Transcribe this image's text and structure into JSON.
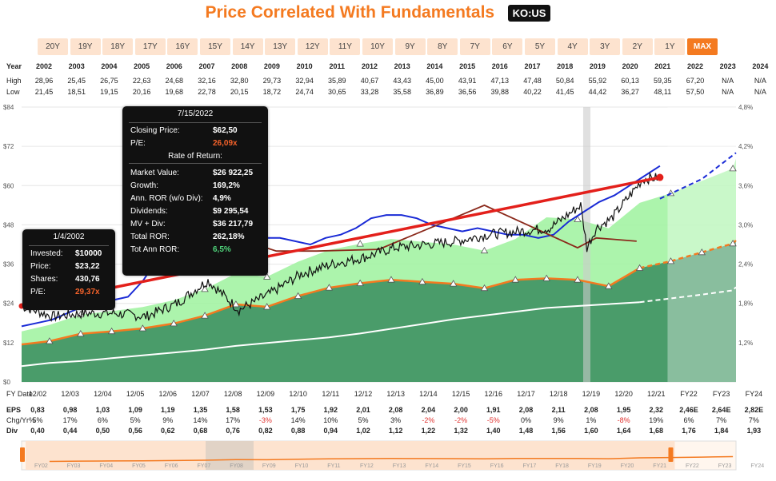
{
  "header": {
    "title": "Price Correlated With Fundamentals",
    "ticker": "KO:US"
  },
  "ranges": {
    "items": [
      "20Y",
      "19Y",
      "18Y",
      "17Y",
      "16Y",
      "15Y",
      "14Y",
      "13Y",
      "12Y",
      "11Y",
      "10Y",
      "9Y",
      "8Y",
      "7Y",
      "6Y",
      "5Y",
      "4Y",
      "3Y",
      "2Y",
      "1Y",
      "MAX"
    ],
    "active": "MAX"
  },
  "year_table": {
    "labels": {
      "year": "Year",
      "high": "High",
      "low": "Low"
    },
    "years": [
      "2002",
      "2003",
      "2004",
      "2005",
      "2006",
      "2007",
      "2008",
      "2009",
      "2010",
      "2011",
      "2012",
      "2013",
      "2014",
      "2015",
      "2016",
      "2017",
      "2018",
      "2019",
      "2020",
      "2021",
      "2022",
      "2023",
      "2024"
    ],
    "high": [
      "28,96",
      "25,45",
      "26,75",
      "22,63",
      "24,68",
      "32,16",
      "32,80",
      "29,73",
      "32,94",
      "35,89",
      "40,67",
      "43,43",
      "45,00",
      "43,91",
      "47,13",
      "47,48",
      "50,84",
      "55,92",
      "60,13",
      "59,35",
      "67,20",
      "N/A",
      "N/A"
    ],
    "low": [
      "21,45",
      "18,51",
      "19,15",
      "20,16",
      "19,68",
      "22,78",
      "20,15",
      "18,72",
      "24,74",
      "30,65",
      "33,28",
      "35,58",
      "36,89",
      "36,56",
      "39,88",
      "40,22",
      "41,45",
      "44,42",
      "36,27",
      "48,11",
      "57,50",
      "N/A",
      "N/A"
    ]
  },
  "bottom_table": {
    "labels": {
      "fy": "FY Date",
      "eps": "EPS",
      "chg": "Chg/Yr%",
      "div": "Div"
    },
    "fy": [
      "12/02",
      "12/03",
      "12/04",
      "12/05",
      "12/06",
      "12/07",
      "12/08",
      "12/09",
      "12/10",
      "12/11",
      "12/12",
      "12/13",
      "12/14",
      "12/15",
      "12/16",
      "12/17",
      "12/18",
      "12/19",
      "12/20",
      "12/21",
      "FY22",
      "FY23",
      "FY24"
    ],
    "eps": [
      "0,83",
      "0,98",
      "1,03",
      "1,09",
      "1,19",
      "1,35",
      "1,58",
      "1,53",
      "1,75",
      "1,92",
      "2,01",
      "2,08",
      "2,04",
      "2,00",
      "1,91",
      "2,08",
      "2,11",
      "2,08",
      "1,95",
      "2,32",
      "2,46E",
      "2,64E",
      "2,82E"
    ],
    "chg": [
      "5%",
      "17%",
      "6%",
      "5%",
      "9%",
      "14%",
      "17%",
      "-3%",
      "14%",
      "10%",
      "5%",
      "3%",
      "-2%",
      "-2%",
      "-5%",
      "0%",
      "9%",
      "1%",
      "-8%",
      "19%",
      "6%",
      "7%",
      "7%"
    ],
    "div": [
      "0,40",
      "0,44",
      "0,50",
      "0,56",
      "0,62",
      "0,68",
      "0,76",
      "0,82",
      "0,88",
      "0,94",
      "1,02",
      "1,12",
      "1,22",
      "1,32",
      "1,40",
      "1,48",
      "1,56",
      "1,60",
      "1,64",
      "1,68",
      "1,76",
      "1,84",
      "1,93"
    ]
  },
  "navigator_labels": [
    "FY02",
    "FY03",
    "FY04",
    "FY05",
    "FY06",
    "FY07",
    "FY08",
    "FY09",
    "FY10",
    "FY11",
    "FY12",
    "FY13",
    "FY14",
    "FY15",
    "FY16",
    "FY17",
    "FY18",
    "FY19",
    "FY20",
    "FY21",
    "FY22",
    "FY23",
    "FY24"
  ],
  "chart_data": {
    "type": "area",
    "y_left_ticks": [
      "$0",
      "$12",
      "$24",
      "$36",
      "$48",
      "$60",
      "$72",
      "$84"
    ],
    "y_right_ticks": [
      "1,2%",
      "1,8%",
      "2,4%",
      "3,0%",
      "3,6%",
      "4,2%",
      "4,8%"
    ],
    "ylim": [
      0,
      84
    ],
    "x": [
      2002.9,
      2003.9,
      2004.9,
      2005.9,
      2006.9,
      2007.9,
      2008.9,
      2009.9,
      2010.9,
      2011.9,
      2012.9,
      2013.9,
      2014.9,
      2015.9,
      2016.9,
      2017.9,
      2018.9,
      2019.9,
      2020.9,
      2021.9,
      2022.9,
      2023.9,
      2024.9
    ],
    "series": [
      {
        "name": "EPS",
        "values": [
          0.83,
          0.98,
          1.03,
          1.09,
          1.19,
          1.35,
          1.58,
          1.53,
          1.75,
          1.92,
          2.01,
          2.08,
          2.04,
          2.0,
          1.91,
          2.08,
          2.11,
          2.08,
          1.95,
          2.32,
          2.46,
          2.64,
          2.82
        ]
      },
      {
        "name": "Div",
        "values": [
          0.4,
          0.44,
          0.5,
          0.56,
          0.62,
          0.68,
          0.76,
          0.82,
          0.88,
          0.94,
          1.02,
          1.12,
          1.22,
          1.32,
          1.4,
          1.48,
          1.56,
          1.6,
          1.64,
          1.68,
          1.76,
          1.84,
          1.93
        ]
      }
    ],
    "colors": {
      "price": "#111111",
      "eps_line": "#f47a20",
      "div_line": "#ffffff",
      "pe_line": "#1a2bd6",
      "ror_line": "#e3201b",
      "normal_pe": "#8b2a1c",
      "fund_area": "#4a9c6a",
      "fair_area": "#9ef29e",
      "selection": "#cccccc"
    }
  },
  "tooltip1": {
    "date": "1/4/2002",
    "invested_k": "Invested:",
    "invested_v": "$10000",
    "price_k": "Price:",
    "price_v": "$23,22",
    "shares_k": "Shares:",
    "shares_v": "430,76",
    "pe_k": "P/E:",
    "pe_v": "29,37x"
  },
  "tooltip2": {
    "date": "7/15/2022",
    "close_k": "Closing Price:",
    "close_v": "$62,50",
    "pe_k": "P/E:",
    "pe_v": "26,09x",
    "ror_head": "Rate of Return:",
    "mv_k": "Market Value:",
    "mv_v": "$26 922,25",
    "growth_k": "Growth:",
    "growth_v": "169,2%",
    "annror_k": "Ann. ROR (w/o Div):",
    "annror_v": "4,9%",
    "div_k": "Dividends:",
    "div_v": "$9 295,54",
    "mvdiv_k": "MV + Div:",
    "mvdiv_v": "$36 217,79",
    "total_k": "Total ROR:",
    "total_v": "262,18%",
    "tot_ann_k": "Tot Ann ROR:",
    "tot_ann_v": "6,5%"
  }
}
